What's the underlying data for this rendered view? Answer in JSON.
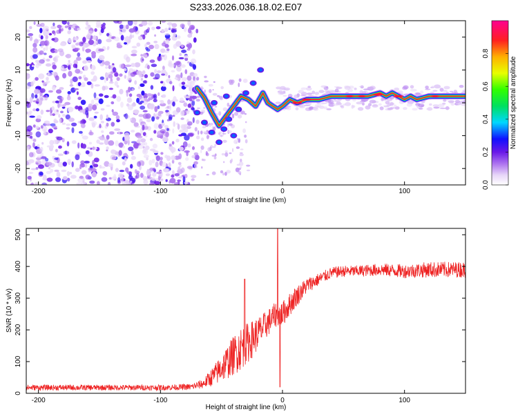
{
  "chart_data": [
    {
      "id": "spectrogram",
      "type": "heatmap",
      "title": "S233.2026.036.18.02.E07",
      "xlabel": "Height of straight line (km)",
      "ylabel": "Frequency (Hz)",
      "xlim": [
        -210,
        150
      ],
      "ylim": [
        -25,
        25
      ],
      "xticks": [
        -200,
        -100,
        0,
        100
      ],
      "yticks": [
        20,
        10,
        0,
        -10,
        -20
      ],
      "colorbar": {
        "label": "Normalized spectral amplitude",
        "range": [
          0,
          1
        ],
        "ticks": [
          0.0,
          0.2,
          0.4,
          0.6,
          0.8
        ]
      },
      "ridge_trace": {
        "x": [
          -70,
          -64,
          -58,
          -52,
          -46,
          -40,
          -34,
          -28,
          -22,
          -16,
          -12,
          -8,
          -4,
          0,
          6,
          12,
          20,
          30,
          40,
          50,
          60,
          70,
          80,
          85,
          90,
          95,
          100,
          105,
          110,
          120,
          130,
          140,
          150
        ],
        "y": [
          4.5,
          1.5,
          -3,
          -7,
          -4,
          -1,
          2,
          1,
          -1,
          3,
          0,
          -1,
          -2,
          -1,
          1,
          0,
          1,
          1,
          2,
          2,
          2,
          2,
          3,
          2,
          3,
          2,
          1,
          2,
          1,
          2,
          2,
          2,
          2
        ],
        "amplitude": [
          0.3,
          0.3,
          0.35,
          0.4,
          0.35,
          0.3,
          0.35,
          0.4,
          0.5,
          0.55,
          0.6,
          0.65,
          0.6,
          0.7,
          0.85,
          0.9,
          0.8,
          0.7,
          0.75,
          0.85,
          0.9,
          0.9,
          0.95,
          0.8,
          0.9,
          0.85,
          0.8,
          0.85,
          0.75,
          0.8,
          0.85,
          0.8,
          0.8
        ]
      }
    },
    {
      "id": "snr",
      "type": "line",
      "xlabel": "Height of straight line (km)",
      "ylabel": "SNR (10 * v/v)",
      "xlim": [
        -210,
        150
      ],
      "ylim": [
        0,
        520
      ],
      "xticks": [
        -200,
        -100,
        0,
        100
      ],
      "yticks": [
        0,
        100,
        200,
        300,
        400,
        500
      ],
      "series": [
        {
          "name": "SNR",
          "color": "#ee2222",
          "envelope_x": [
            -210,
            -100,
            -75,
            -65,
            -55,
            -45,
            -35,
            -25,
            -15,
            -5,
            0,
            10,
            20,
            30,
            40,
            50,
            60,
            80,
            100,
            120,
            150
          ],
          "envelope_mean": [
            18,
            18,
            20,
            30,
            60,
            100,
            140,
            170,
            210,
            250,
            250,
            300,
            340,
            360,
            380,
            385,
            385,
            390,
            385,
            390,
            390
          ],
          "envelope_noise": [
            9,
            9,
            10,
            15,
            35,
            55,
            70,
            60,
            45,
            40,
            40,
            35,
            25,
            20,
            18,
            18,
            18,
            20,
            22,
            25,
            25
          ],
          "spikes": [
            [
              -31,
              360
            ],
            [
              -4,
              520
            ],
            [
              -2,
              20
            ]
          ]
        }
      ]
    }
  ]
}
